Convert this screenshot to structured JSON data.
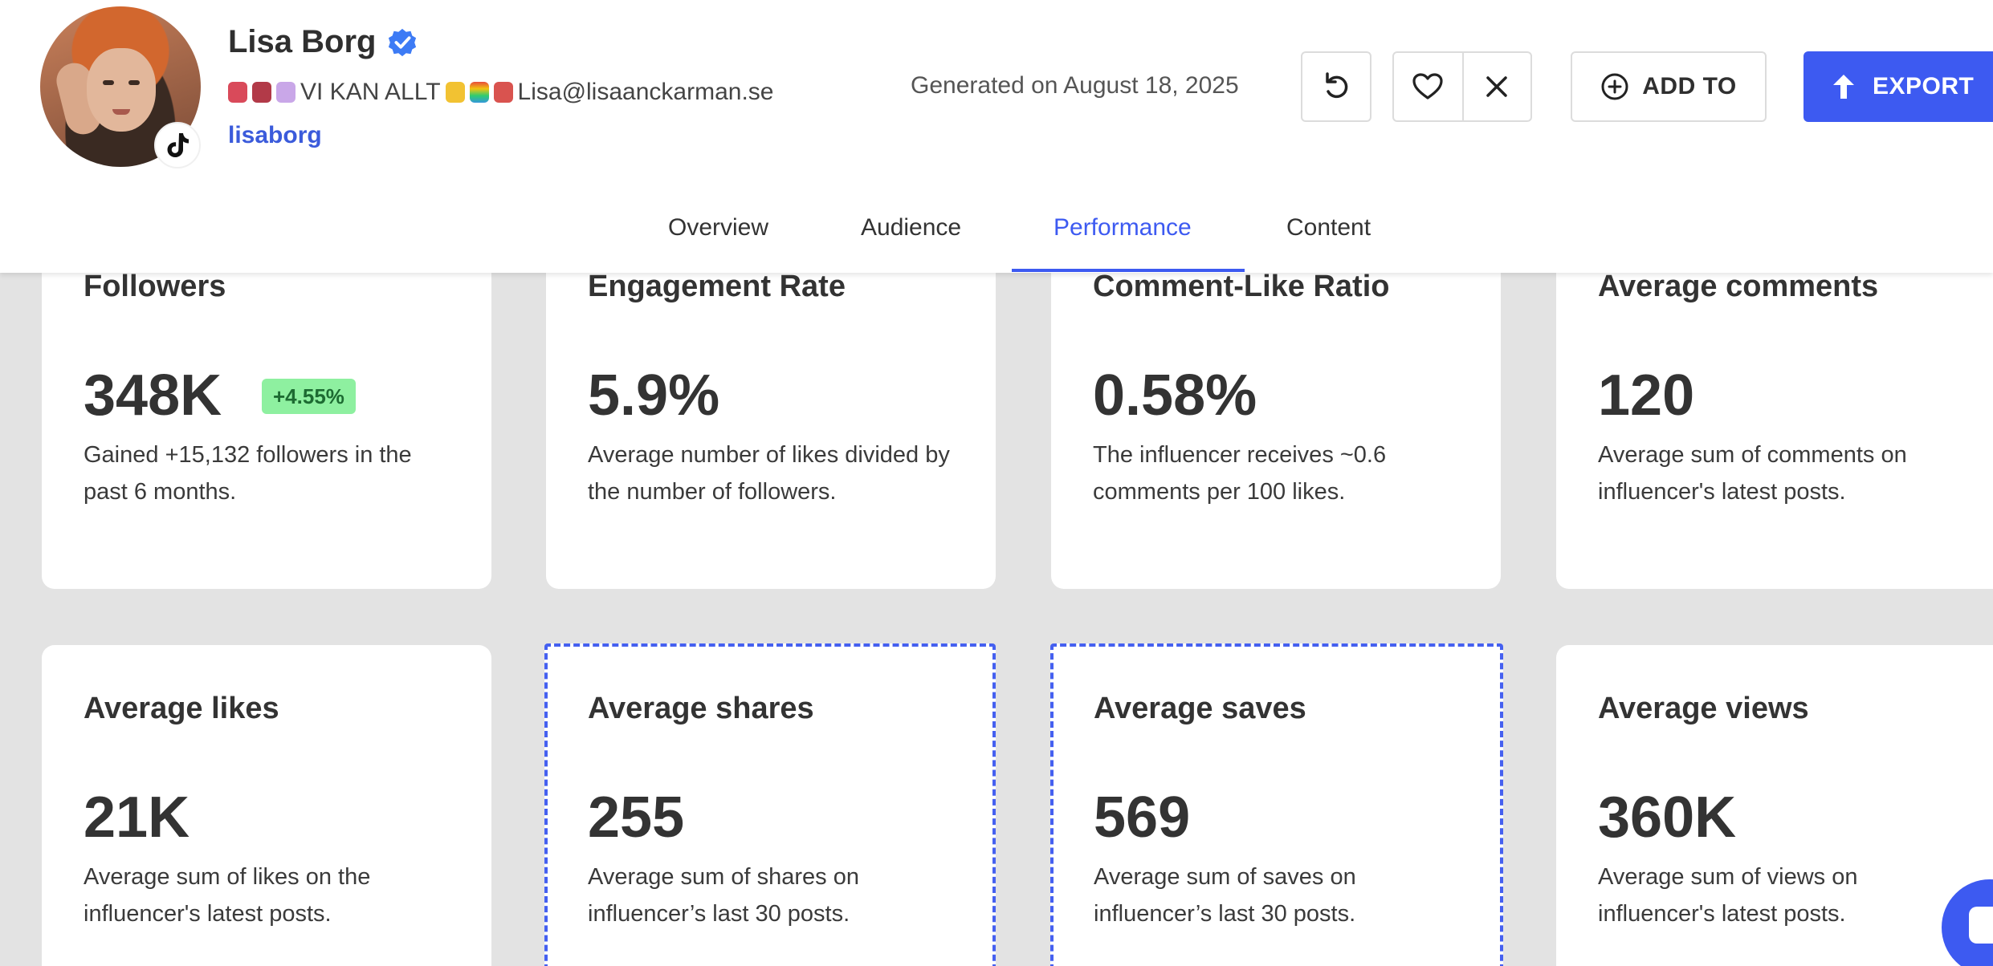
{
  "profile": {
    "name": "Lisa Borg",
    "bio_text": "VI KAN ALLT",
    "email": "Lisa@lisaanckarman.se",
    "handle": "lisaborg",
    "platform_icon": "tiktok-icon"
  },
  "header": {
    "generated": "Generated on August 18, 2025",
    "add_to_label": "ADD TO",
    "export_label": "EXPORT"
  },
  "tabs": [
    {
      "label": "Overview"
    },
    {
      "label": "Audience"
    },
    {
      "label": "Performance",
      "active": true
    },
    {
      "label": "Content"
    }
  ],
  "metrics_row1": [
    {
      "title": "Followers",
      "value": "348K",
      "badge": "+4.55%",
      "desc": "Gained +15,132 followers in the past 6 months."
    },
    {
      "title": "Engagement Rate",
      "value": "5.9%",
      "desc": "Average number of likes divided by the number of followers."
    },
    {
      "title": "Comment-Like Ratio",
      "value": "0.58%",
      "desc": "The influencer receives ~0.6 comments per 100 likes."
    },
    {
      "title": "Average comments",
      "value": "120",
      "desc": "Average sum of comments on influencer's latest posts."
    }
  ],
  "metrics_row2": [
    {
      "title": "Average likes",
      "value": "21K",
      "desc": "Average sum of likes on the influencer's latest posts."
    },
    {
      "title": "Average shares",
      "value": "255",
      "desc": "Average sum of shares on influencer’s last 30 posts."
    },
    {
      "title": "Average saves",
      "value": "569",
      "desc": "Average sum of saves on influencer’s last 30 posts."
    },
    {
      "title": "Average views",
      "value": "360K",
      "desc": "Average sum of views on influencer's latest posts."
    }
  ],
  "colors": {
    "accent": "#3d5af1",
    "badge_bg": "#8ef0a0",
    "page_bg": "#e3e3e3"
  }
}
